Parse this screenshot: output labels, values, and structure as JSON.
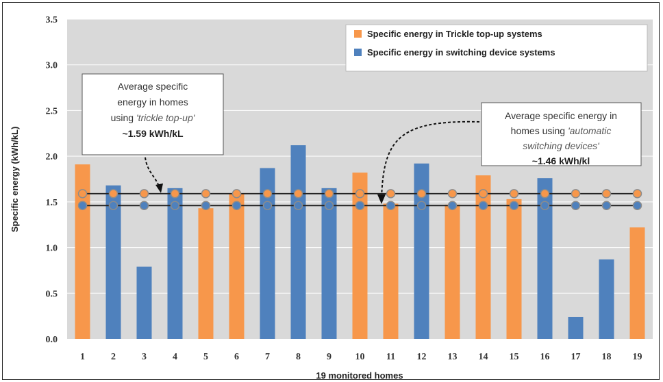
{
  "chart_data": {
    "type": "bar",
    "xlabel": "19 monitored homes",
    "ylabel": "Specific energy (kWh/kL)",
    "ylim": [
      0,
      3.5
    ],
    "yticks": [
      "0.0",
      "0.5",
      "1.0",
      "1.5",
      "2.0",
      "2.5",
      "3.0",
      "3.5"
    ],
    "grid": true,
    "legend_position": "top-right",
    "categories": [
      "1",
      "2",
      "3",
      "4",
      "5",
      "6",
      "7",
      "8",
      "9",
      "10",
      "11",
      "12",
      "13",
      "14",
      "15",
      "16",
      "17",
      "18",
      "19"
    ],
    "series": [
      {
        "name": "Specific energy in Trickle top-up systems",
        "color": "#f7974b",
        "values": [
          1.91,
          null,
          null,
          null,
          1.43,
          1.59,
          null,
          null,
          null,
          1.82,
          1.48,
          null,
          1.47,
          1.79,
          1.53,
          null,
          null,
          null,
          1.22
        ]
      },
      {
        "name": "Specific energy in switching device systems",
        "color": "#4f81bd",
        "values": [
          null,
          1.68,
          0.79,
          1.65,
          null,
          null,
          1.87,
          2.12,
          1.65,
          null,
          null,
          1.92,
          null,
          null,
          null,
          1.76,
          0.24,
          0.87,
          null
        ]
      }
    ],
    "reference_lines": [
      {
        "value": 1.59,
        "marker_color": "#f7974b"
      },
      {
        "value": 1.46,
        "marker_color": "#4f81bd"
      }
    ],
    "annotations": [
      {
        "lines": [
          [
            {
              "t": "Average specific",
              "s": ""
            }
          ],
          [
            {
              "t": "energy in homes",
              "s": ""
            }
          ],
          [
            {
              "t": "using ",
              "s": ""
            },
            {
              "t": "'trickle top-up'",
              "s": "i"
            }
          ],
          [
            {
              "t": "~1.59 kWh/kL",
              "s": "b"
            }
          ]
        ]
      },
      {
        "lines": [
          [
            {
              "t": "Average specific energy in",
              "s": ""
            }
          ],
          [
            {
              "t": "homes using ",
              "s": ""
            },
            {
              "t": "'automatic",
              "s": "i"
            }
          ],
          [
            {
              "t": "switching devices'",
              "s": "i"
            }
          ],
          [
            {
              "t": "~1.46 kWh/kl",
              "s": "b"
            }
          ]
        ]
      }
    ]
  }
}
